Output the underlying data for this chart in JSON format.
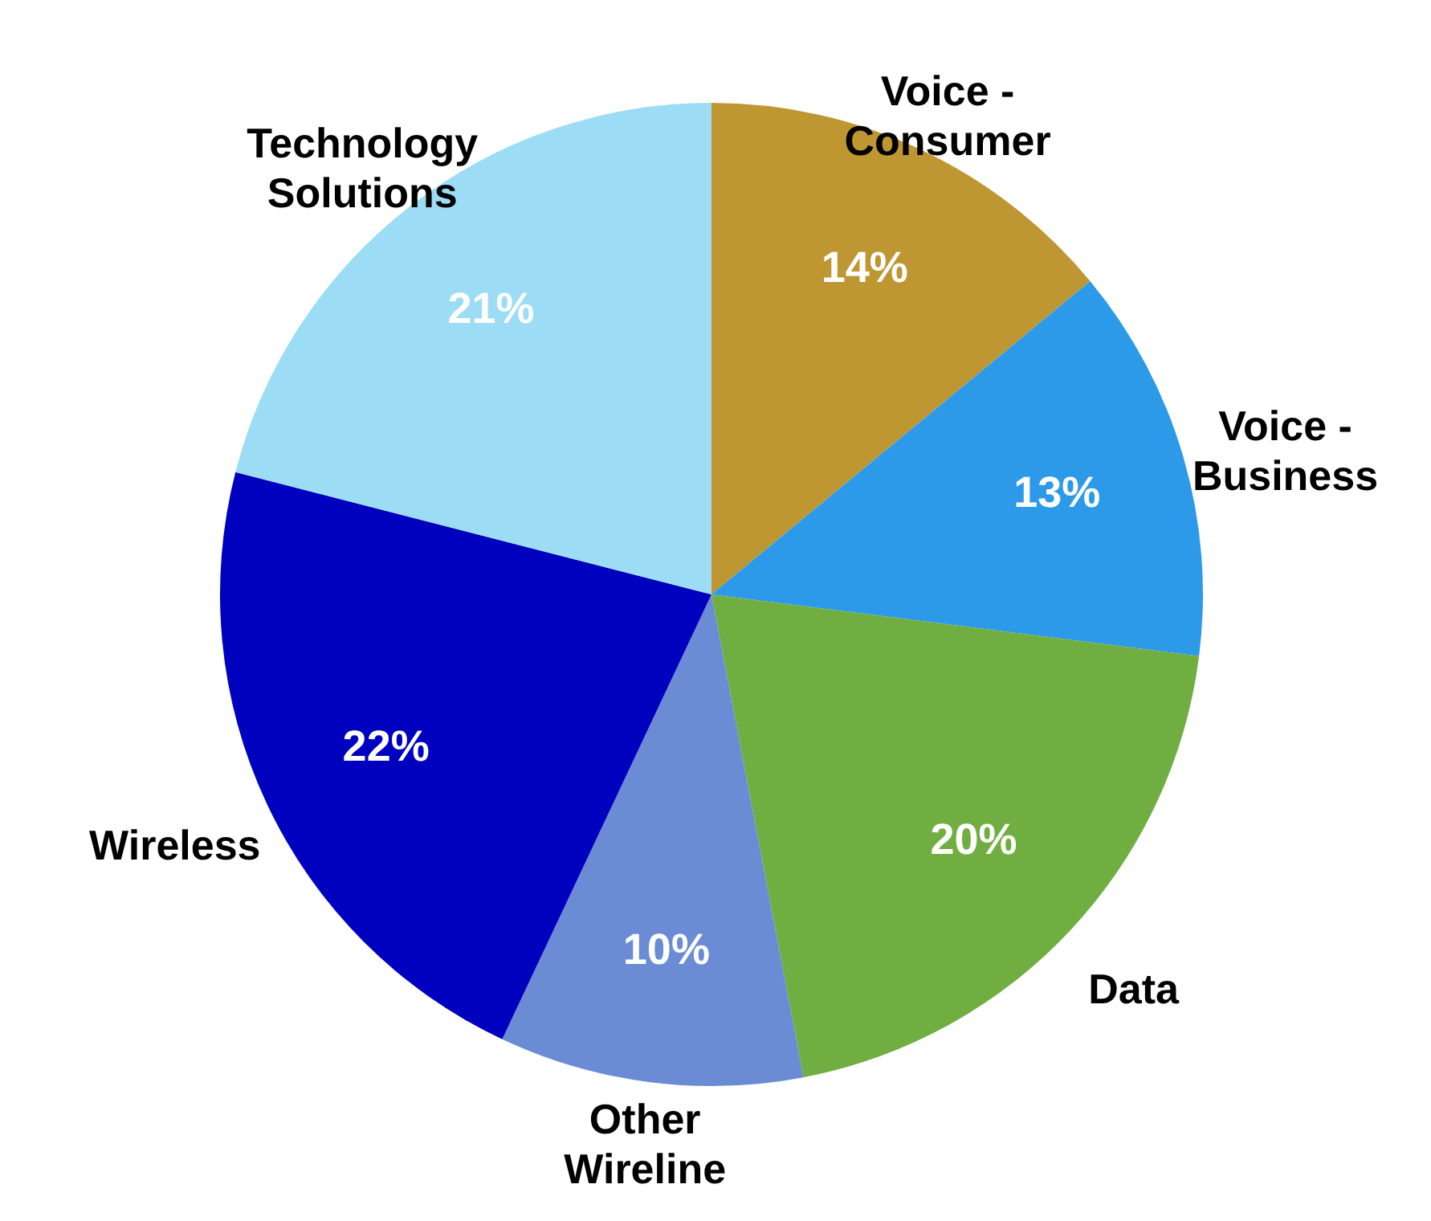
{
  "chart_data": {
    "type": "pie",
    "categories": [
      "Voice - Consumer",
      "Voice - Business",
      "Data",
      "Other Wireline",
      "Wireless",
      "Technology Solutions"
    ],
    "values": [
      14,
      13,
      20,
      10,
      22,
      21
    ],
    "value_labels": [
      "14%",
      "13%",
      "20%",
      "10%",
      "22%",
      "21%"
    ],
    "colors": [
      "#be9733",
      "#2c9ae8",
      "#70ae42",
      "#6b8cd4",
      "#0000bf",
      "#9cdcf5"
    ]
  }
}
